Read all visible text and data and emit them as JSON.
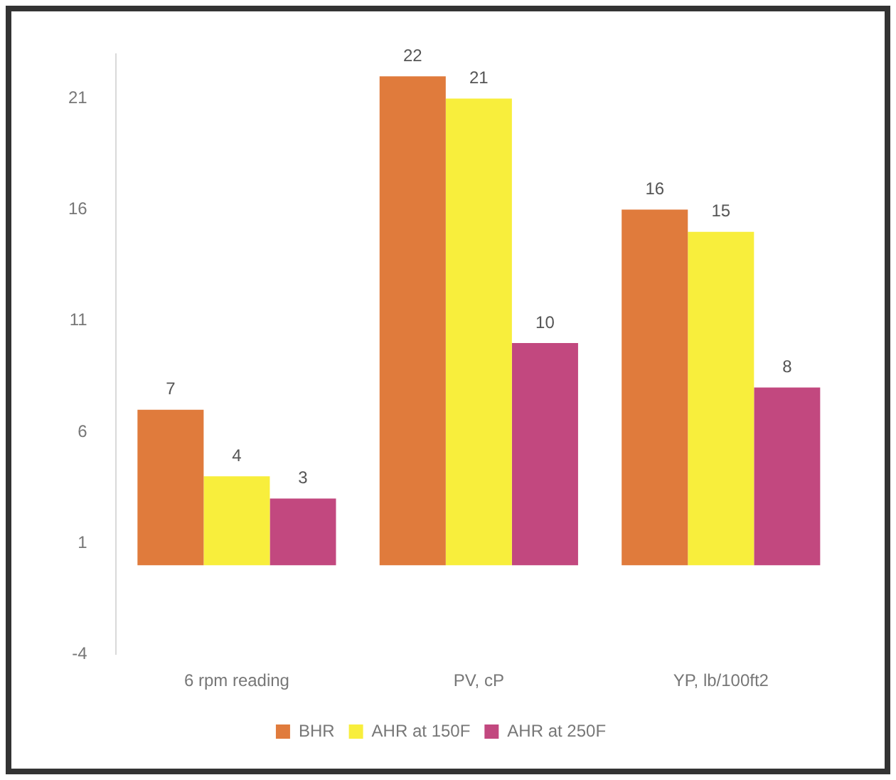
{
  "chart_data": {
    "type": "bar",
    "categories": [
      "6 rpm reading",
      "PV, cP",
      "YP, lb/100ft2"
    ],
    "series": [
      {
        "name": "BHR",
        "color": "#e07b3c",
        "values": [
          7,
          22,
          16
        ]
      },
      {
        "name": "AHR at 150F",
        "color": "#f8ee3c",
        "values": [
          4,
          21,
          15
        ]
      },
      {
        "name": "AHR at 250F",
        "color": "#c2487f",
        "values": [
          3,
          10,
          8
        ]
      }
    ],
    "ylim": [
      -4,
      23
    ],
    "yticks": [
      -4,
      1,
      6,
      11,
      16,
      21
    ],
    "grid": false,
    "legend": "bottom",
    "data_labels": true
  }
}
